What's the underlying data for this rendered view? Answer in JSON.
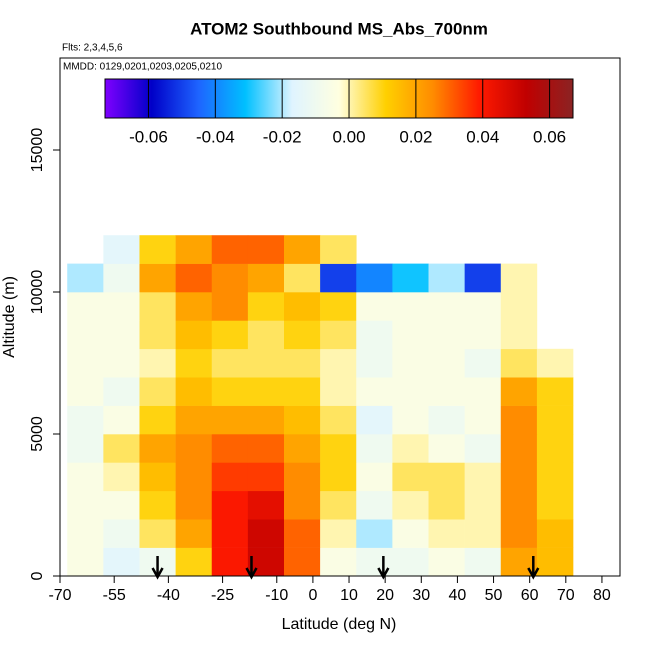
{
  "chart_data": {
    "type": "heatmap",
    "title": "ATOM2 Southbound MS_Abs_700nm",
    "annotations": [
      "Flts: 2,3,4,5,6",
      "MMDD: 0129,0201,0203,0205,0210"
    ],
    "x_label": "Latitude (deg N)",
    "y_label": "Altitude (m)",
    "xlim": [
      -70,
      85
    ],
    "ylim": [
      0,
      18240
    ],
    "xticks": [
      -70,
      -55,
      -40,
      -25,
      -10,
      0,
      10,
      20,
      30,
      40,
      50,
      60,
      70,
      80
    ],
    "yticks": [
      0,
      5000,
      10000,
      15000
    ],
    "x_edges": [
      -68,
      -58,
      -48,
      -38,
      -28,
      -18,
      -8,
      2,
      12,
      22,
      32,
      42,
      52,
      62,
      72
    ],
    "y_edges": [
      0,
      1000,
      2000,
      3000,
      4000,
      5000,
      6000,
      7000,
      8000,
      9000,
      10000,
      11000,
      12000
    ],
    "values": [
      [
        -0.005,
        -0.015,
        -0.01,
        0.01,
        0.04,
        0.05,
        0.03,
        -0.005,
        -0.01,
        -0.01,
        -0.005,
        -0.01,
        0.02,
        0.015
      ],
      [
        -0.005,
        -0.01,
        0.005,
        0.02,
        0.04,
        0.05,
        0.03,
        0,
        -0.02,
        -0.005,
        0,
        0,
        0.025,
        0.015
      ],
      [
        -0.005,
        -0.005,
        0.01,
        0.025,
        0.04,
        0.045,
        0.025,
        0.005,
        -0.01,
        0,
        0.005,
        0,
        0.025,
        0.01
      ],
      [
        -0.005,
        0,
        0.015,
        0.025,
        0.035,
        0.035,
        0.025,
        0.01,
        -0.005,
        0.005,
        0.005,
        0,
        0.025,
        0.01
      ],
      [
        -0.01,
        0.005,
        0.02,
        0.025,
        0.03,
        0.03,
        0.02,
        0.01,
        -0.01,
        0,
        -0.005,
        -0.01,
        0.025,
        0.01
      ],
      [
        -0.01,
        -0.005,
        0.01,
        0.02,
        0.02,
        0.02,
        0.015,
        0.005,
        -0.015,
        -0.005,
        -0.01,
        -0.005,
        0.025,
        0.01
      ],
      [
        -0.005,
        -0.01,
        0.005,
        0.015,
        0.01,
        0.01,
        0.01,
        0,
        -0.005,
        -0.005,
        -0.005,
        -0.005,
        0.02,
        0.01
      ],
      [
        -0.005,
        -0.005,
        0,
        0.01,
        0.005,
        0.005,
        0.005,
        0,
        -0.01,
        -0.005,
        -0.005,
        -0.01,
        0.005,
        0
      ],
      [
        -0.005,
        -0.005,
        0.005,
        0.015,
        0.01,
        0.005,
        0.01,
        0.005,
        -0.01,
        -0.005,
        -0.005,
        -0.005,
        0,
        null
      ],
      [
        -0.005,
        -0.005,
        0.005,
        0.02,
        0.025,
        0.01,
        0.015,
        0.01,
        -0.005,
        -0.005,
        -0.005,
        -0.005,
        0,
        null
      ],
      [
        -0.02,
        -0.01,
        0.02,
        0.03,
        0.025,
        0.02,
        0.005,
        -0.05,
        -0.04,
        -0.03,
        -0.02,
        -0.05,
        0,
        null
      ],
      [
        null,
        -0.015,
        0.01,
        0.02,
        0.03,
        0.03,
        0.02,
        0.005,
        null,
        null,
        null,
        null,
        null,
        null
      ]
    ],
    "zlim": [
      -0.073,
      0.067
    ],
    "zticks": [
      -0.06,
      -0.04,
      -0.02,
      {
        "value": 0,
        "label": "0.00"
      },
      0.02,
      0.04,
      0.06
    ],
    "colorscale": [
      "#7f00ff",
      "#0000c8",
      "#1e64ff",
      "#00c0ff",
      "#dff4ff",
      "#ffffe0",
      "#ffd000",
      "#ff8c00",
      "#ff1a00",
      "#c00000",
      "#8b2323"
    ],
    "arrows": [
      -43,
      -17,
      19.5,
      61
    ]
  }
}
